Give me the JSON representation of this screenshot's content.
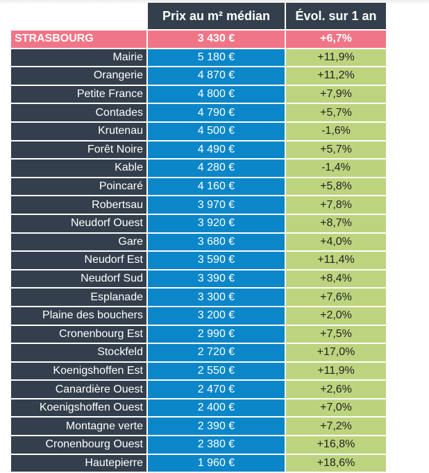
{
  "header": {
    "price": "Prix au m² médian",
    "evolution": "Évol. sur 1 an"
  },
  "city": {
    "name": "STRASBOURG",
    "price": "3 430 €",
    "evolution": "+6,7%"
  },
  "colors": {
    "header": "#333f4c",
    "city": "#f07587",
    "price": "#0b86c8",
    "evolution": "#bdd47f"
  },
  "rows": [
    {
      "name": "Mairie",
      "price": "5 180 €",
      "evolution": "+11,9%"
    },
    {
      "name": "Orangerie",
      "price": "4 870 €",
      "evolution": "+11,2%"
    },
    {
      "name": "Petite France",
      "price": "4 800 €",
      "evolution": "+7,9%"
    },
    {
      "name": "Contades",
      "price": "4 790 €",
      "evolution": "+5,7%"
    },
    {
      "name": "Krutenau",
      "price": "4 500 €",
      "evolution": "-1,6%"
    },
    {
      "name": "Forêt Noire",
      "price": "4 490 €",
      "evolution": "+5,7%"
    },
    {
      "name": "Kable",
      "price": "4 280 €",
      "evolution": "-1,4%"
    },
    {
      "name": "Poincaré",
      "price": "4 160 €",
      "evolution": "+5,8%"
    },
    {
      "name": "Robertsau",
      "price": "3 970 €",
      "evolution": "+7,8%"
    },
    {
      "name": "Neudorf Ouest",
      "price": "3 920 €",
      "evolution": "+8,7%"
    },
    {
      "name": "Gare",
      "price": "3 680 €",
      "evolution": "+4,0%"
    },
    {
      "name": "Neudorf Est",
      "price": "3 590 €",
      "evolution": "+11,4%"
    },
    {
      "name": "Neudorf Sud",
      "price": "3 390 €",
      "evolution": "+8,4%"
    },
    {
      "name": "Esplanade",
      "price": "3 300 €",
      "evolution": "+7,6%"
    },
    {
      "name": "Plaine des bouchers",
      "price": "3 200 €",
      "evolution": "+2,0%"
    },
    {
      "name": "Cronenbourg Est",
      "price": "2 990 €",
      "evolution": "+7,5%"
    },
    {
      "name": "Stockfeld",
      "price": "2 720 €",
      "evolution": "+17,0%"
    },
    {
      "name": "Koenigshoffen Est",
      "price": "2 550 €",
      "evolution": "+11,9%"
    },
    {
      "name": "Canardière Ouest",
      "price": "2 470 €",
      "evolution": "+2,6%"
    },
    {
      "name": "Koenigshoffen Ouest",
      "price": "2 400 €",
      "evolution": "+7,0%"
    },
    {
      "name": "Montagne verte",
      "price": "2 390 €",
      "evolution": "+7,2%"
    },
    {
      "name": "Cronenbourg Ouest",
      "price": "2 380 €",
      "evolution": "+16,8%"
    },
    {
      "name": "Hautepierre",
      "price": "1 960 €",
      "evolution": "+18,6%"
    }
  ]
}
